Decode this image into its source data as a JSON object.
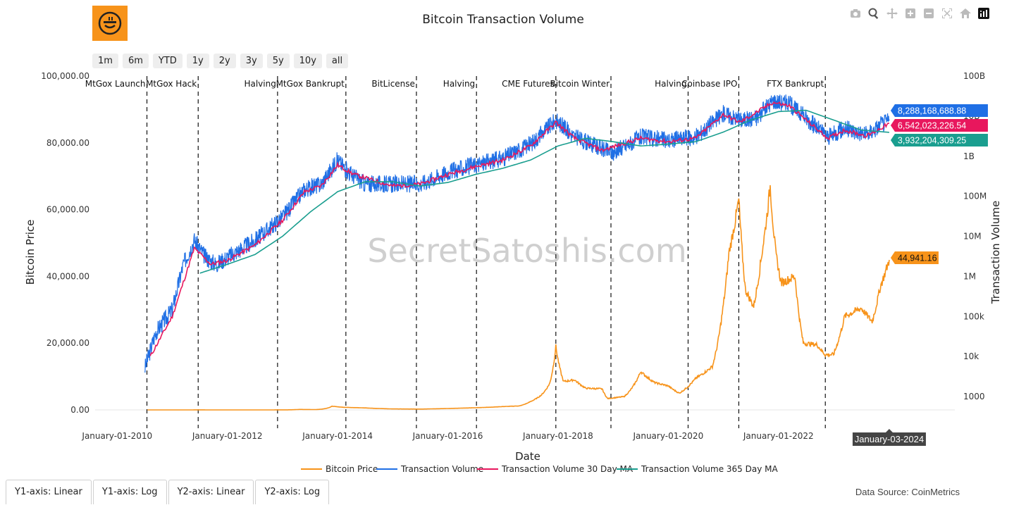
{
  "title": "Bitcoin Transaction Volume",
  "watermark": "SecretSatoshis.com",
  "range_buttons": [
    "1m",
    "6m",
    "YTD",
    "1y",
    "2y",
    "3y",
    "5y",
    "10y",
    "all"
  ],
  "axis_buttons": [
    "Y1-axis: Linear",
    "Y1-axis: Log",
    "Y2-axis: Linear",
    "Y2-axis: Log"
  ],
  "data_source": "Data Source: CoinMetrics",
  "modebar_icons": [
    "camera-icon",
    "zoom-icon",
    "pan-icon",
    "zoom-in-icon",
    "zoom-out-icon",
    "autoscale-icon",
    "home-icon",
    "plotly-logo-icon"
  ],
  "chart_data": {
    "type": "line",
    "title": "Bitcoin Transaction Volume",
    "xlabel": "Date",
    "ylabel": "Bitcoin Price",
    "y2label": "Transaction Volume",
    "y_ticks": [
      "100,000.00",
      "80,000.00",
      "60,000.00",
      "40,000.00",
      "20,000.00",
      "0.00"
    ],
    "y_range": [
      0,
      100000
    ],
    "y2_scale": "log",
    "y2_ticks": [
      "100B",
      "10B",
      "1B",
      "100M",
      "10M",
      "1M",
      "100k",
      "10k",
      "1000"
    ],
    "y2_tick_values": [
      100000000000.0,
      10000000000.0,
      1000000000.0,
      100000000.0,
      10000000.0,
      1000000.0,
      100000.0,
      10000.0,
      1000.0
    ],
    "x_ticks": [
      "January-01-2010",
      "January-01-2012",
      "January-01-2014",
      "January-01-2016",
      "January-01-2018",
      "January-01-2020",
      "January-01-2022"
    ],
    "x_tick_years": [
      2010,
      2012,
      2014,
      2016,
      2018,
      2020,
      2022
    ],
    "x_range": [
      2009.6,
      2025.2
    ],
    "hover_date": "January-03-2024",
    "colors": {
      "price": "#f7931a",
      "volume": "#1f6fe5",
      "ma30": "#e8175d",
      "ma365": "#1a9e8f"
    },
    "events": [
      {
        "label": "MtGox Launch",
        "year": 2010.54
      },
      {
        "label": "MtGox Hack",
        "year": 2011.47
      },
      {
        "label": "Halving",
        "year": 2012.91
      },
      {
        "label": "MtGox Bankrupt",
        "year": 2014.15
      },
      {
        "label": "BitLicense",
        "year": 2015.43
      },
      {
        "label": "Halving",
        "year": 2016.52
      },
      {
        "label": "CME Futures",
        "year": 2017.96
      },
      {
        "label": "Bitcoin Winter",
        "year": 2018.96
      },
      {
        "label": "Halving",
        "year": 2020.36
      },
      {
        "label": "Coinbase IPO",
        "year": 2021.28
      },
      {
        "label": "FTX Bankrupt",
        "year": 2022.85
      }
    ],
    "latest_labels": {
      "volume": "8,288,168,688.88",
      "ma30": "6,542,023,226.54",
      "ma365": "3,932,204,309.25",
      "price": "44,941.16"
    },
    "latest_values": {
      "volume": 8288168688.88,
      "ma30": 6542023226.54,
      "ma365": 3932204309.25,
      "price": 44941.16
    },
    "series": [
      {
        "name": "Bitcoin Price",
        "axis": "y1",
        "points": [
          [
            2010.55,
            0.06
          ],
          [
            2011.0,
            0.3
          ],
          [
            2011.45,
            20
          ],
          [
            2011.9,
            3
          ],
          [
            2012.5,
            7
          ],
          [
            2013.0,
            13
          ],
          [
            2013.3,
            150
          ],
          [
            2013.6,
            100
          ],
          [
            2013.9,
            1100
          ],
          [
            2014.1,
            800
          ],
          [
            2014.5,
            600
          ],
          [
            2015.0,
            300
          ],
          [
            2015.5,
            250
          ],
          [
            2016.0,
            430
          ],
          [
            2016.5,
            650
          ],
          [
            2017.0,
            1000
          ],
          [
            2017.3,
            1200
          ],
          [
            2017.5,
            2500
          ],
          [
            2017.7,
            4500
          ],
          [
            2017.85,
            8000
          ],
          [
            2017.96,
            19000
          ],
          [
            2018.1,
            8500
          ],
          [
            2018.3,
            9000
          ],
          [
            2018.5,
            6500
          ],
          [
            2018.8,
            6300
          ],
          [
            2018.9,
            3400
          ],
          [
            2019.2,
            4000
          ],
          [
            2019.5,
            11500
          ],
          [
            2019.75,
            8200
          ],
          [
            2020.0,
            7200
          ],
          [
            2020.2,
            5000
          ],
          [
            2020.5,
            9500
          ],
          [
            2020.8,
            13000
          ],
          [
            2020.98,
            29000
          ],
          [
            2021.1,
            47000
          ],
          [
            2021.28,
            63000
          ],
          [
            2021.4,
            36000
          ],
          [
            2021.55,
            31000
          ],
          [
            2021.7,
            47000
          ],
          [
            2021.85,
            67000
          ],
          [
            2021.95,
            47000
          ],
          [
            2022.05,
            38000
          ],
          [
            2022.3,
            40000
          ],
          [
            2022.45,
            20000
          ],
          [
            2022.7,
            19500
          ],
          [
            2022.85,
            16500
          ],
          [
            2023.0,
            16600
          ],
          [
            2023.2,
            28000
          ],
          [
            2023.5,
            30500
          ],
          [
            2023.7,
            26500
          ],
          [
            2023.85,
            37000
          ],
          [
            2024.01,
            44941.16
          ]
        ]
      },
      {
        "name": "Transaction Volume",
        "axis": "y2",
        "points": [
          [
            2010.5,
            5000.0
          ],
          [
            2010.7,
            40000.0
          ],
          [
            2011.0,
            150000.0
          ],
          [
            2011.2,
            2000000.0
          ],
          [
            2011.4,
            8000000.0
          ],
          [
            2011.6,
            3000000.0
          ],
          [
            2011.8,
            2000000.0
          ],
          [
            2012.0,
            3000000.0
          ],
          [
            2012.5,
            8000000.0
          ],
          [
            2013.0,
            30000000.0
          ],
          [
            2013.4,
            150000000.0
          ],
          [
            2013.7,
            200000000.0
          ],
          [
            2014.0,
            800000000.0
          ],
          [
            2014.2,
            400000000.0
          ],
          [
            2014.5,
            200000000.0
          ],
          [
            2015.0,
            200000000.0
          ],
          [
            2015.5,
            200000000.0
          ],
          [
            2016.0,
            400000000.0
          ],
          [
            2016.5,
            600000000.0
          ],
          [
            2017.0,
            900000000.0
          ],
          [
            2017.5,
            2000000000.0
          ],
          [
            2017.96,
            8000000000.0
          ],
          [
            2018.3,
            3000000000.0
          ],
          [
            2018.8,
            1500000000.0
          ],
          [
            2019.0,
            1200000000.0
          ],
          [
            2019.5,
            3000000000.0
          ],
          [
            2020.0,
            2500000000.0
          ],
          [
            2020.5,
            3000000000.0
          ],
          [
            2021.0,
            12000000000.0
          ],
          [
            2021.3,
            8000000000.0
          ],
          [
            2021.6,
            9000000000.0
          ],
          [
            2021.9,
            25000000000.0
          ],
          [
            2022.2,
            20000000000.0
          ],
          [
            2022.5,
            9000000000.0
          ],
          [
            2022.9,
            3000000000.0
          ],
          [
            2023.2,
            5000000000.0
          ],
          [
            2023.6,
            3500000000.0
          ],
          [
            2024.01,
            8288168688.88
          ]
        ]
      },
      {
        "name": "Transaction Volume 30 Day MA",
        "axis": "y2",
        "points": [
          [
            2010.6,
            10000.0
          ],
          [
            2011.0,
            100000.0
          ],
          [
            2011.4,
            5000000.0
          ],
          [
            2011.7,
            2000000.0
          ],
          [
            2012.0,
            2500000.0
          ],
          [
            2012.5,
            6000000.0
          ],
          [
            2013.0,
            25000000.0
          ],
          [
            2013.4,
            130000000.0
          ],
          [
            2013.7,
            180000000.0
          ],
          [
            2014.0,
            600000000.0
          ],
          [
            2014.3,
            350000000.0
          ],
          [
            2015.0,
            180000000.0
          ],
          [
            2015.5,
            200000000.0
          ],
          [
            2016.0,
            350000000.0
          ],
          [
            2016.5,
            550000000.0
          ],
          [
            2017.0,
            800000000.0
          ],
          [
            2017.5,
            1800000000.0
          ],
          [
            2017.96,
            7000000000.0
          ],
          [
            2018.3,
            2800000000.0
          ],
          [
            2018.8,
            1400000000.0
          ],
          [
            2019.5,
            2800000000.0
          ],
          [
            2020.0,
            2300000000.0
          ],
          [
            2020.5,
            2800000000.0
          ],
          [
            2021.0,
            11000000000.0
          ],
          [
            2021.3,
            7000000000.0
          ],
          [
            2021.9,
            22000000000.0
          ],
          [
            2022.2,
            18000000000.0
          ],
          [
            2022.5,
            8000000000.0
          ],
          [
            2022.9,
            2800000000.0
          ],
          [
            2023.2,
            4500000000.0
          ],
          [
            2023.6,
            3200000000.0
          ],
          [
            2024.01,
            6542023226.54
          ]
        ]
      },
      {
        "name": "Transaction Volume 365 Day MA",
        "axis": "y2",
        "points": [
          [
            2011.5,
            1200000.0
          ],
          [
            2012.0,
            2000000.0
          ],
          [
            2012.5,
            3500000.0
          ],
          [
            2013.0,
            10000000.0
          ],
          [
            2013.5,
            40000000.0
          ],
          [
            2014.0,
            130000000.0
          ],
          [
            2014.5,
            230000000.0
          ],
          [
            2015.0,
            230000000.0
          ],
          [
            2015.5,
            180000000.0
          ],
          [
            2016.0,
            220000000.0
          ],
          [
            2016.5,
            350000000.0
          ],
          [
            2017.0,
            500000000.0
          ],
          [
            2017.5,
            800000000.0
          ],
          [
            2018.0,
            1800000000.0
          ],
          [
            2018.5,
            2800000000.0
          ],
          [
            2019.0,
            2300000000.0
          ],
          [
            2019.5,
            1800000000.0
          ],
          [
            2020.0,
            2000000000.0
          ],
          [
            2020.5,
            2300000000.0
          ],
          [
            2021.0,
            4000000000.0
          ],
          [
            2021.5,
            8000000000.0
          ],
          [
            2022.0,
            13000000000.0
          ],
          [
            2022.5,
            14000000000.0
          ],
          [
            2023.0,
            8000000000.0
          ],
          [
            2023.5,
            4500000000.0
          ],
          [
            2024.01,
            3932204309.25
          ]
        ]
      }
    ],
    "legend": [
      "Bitcoin Price",
      "Transaction Volume",
      "Transaction Volume 30 Day MA",
      "Transaction Volume 365 Day MA"
    ],
    "legend_placement": "bottom-center"
  }
}
